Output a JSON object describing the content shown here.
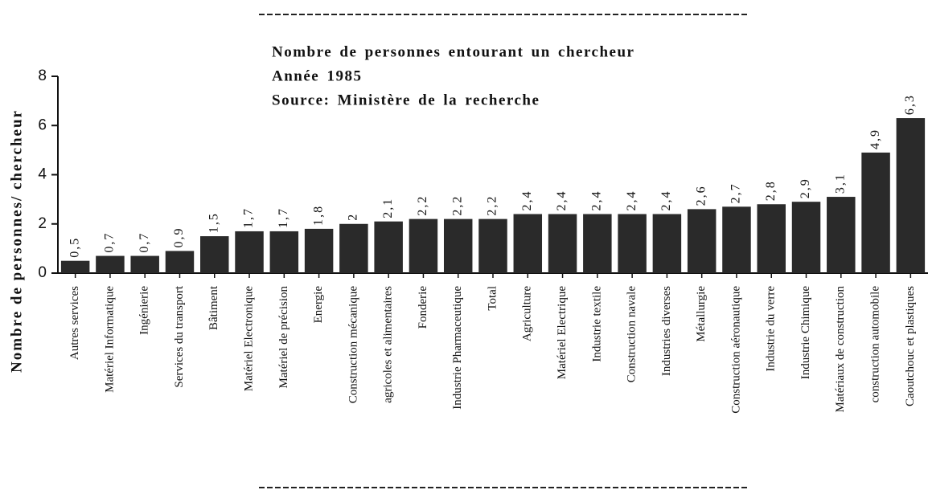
{
  "chart_data": {
    "type": "bar",
    "title": "Nombre de personnes entourant un chercheur",
    "subtitle": [
      "Année  1985",
      "Source:  Ministère  de  la  recherche"
    ],
    "y_label": "Nombre  de  personnes/  chercheur",
    "categories": [
      "Autres services",
      "Matériel Informatique",
      "Ingénierie",
      "Services du transport",
      "Bâtiment",
      "Matériel Electronique",
      "Matériel de précision",
      "Energie",
      "Construction mécanique",
      "agricoles et alimentaires",
      "Fonderie",
      "Industrie Pharmaceutique",
      "Total",
      "Agriculture",
      "Matériel Electrique",
      "Industrie textile",
      "Construction navale",
      "Industries diverses",
      "Métallurgie",
      "Construction aéronautique",
      "Industrie du verre",
      "Industrie Chimique",
      "Matériaux de construction",
      "construction automobile",
      "Caoutchouc et plastiques"
    ],
    "values": [
      0.5,
      0.7,
      0.7,
      0.9,
      1.5,
      1.7,
      1.7,
      1.8,
      2,
      2.1,
      2.2,
      2.2,
      2.2,
      2.4,
      2.4,
      2.4,
      2.4,
      2.4,
      2.6,
      2.7,
      2.8,
      2.9,
      3.1,
      4.9,
      6.3
    ],
    "value_labels": [
      "0,5",
      "0,7",
      "0,7",
      "0,9",
      "1,5",
      "1,7",
      "1,7",
      "1,8",
      "2",
      "2,1",
      "2,2",
      "2,2",
      "2,2",
      "2,4",
      "2,4",
      "2,4",
      "2,4",
      "2,4",
      "2,6",
      "2,7",
      "2,8",
      "2,9",
      "3,1",
      "4,9",
      "6,3"
    ],
    "color": "#2a2a2a",
    "ylim": [
      0,
      8
    ],
    "yticks": [
      0,
      2,
      4,
      6,
      8
    ],
    "grid": false
  }
}
